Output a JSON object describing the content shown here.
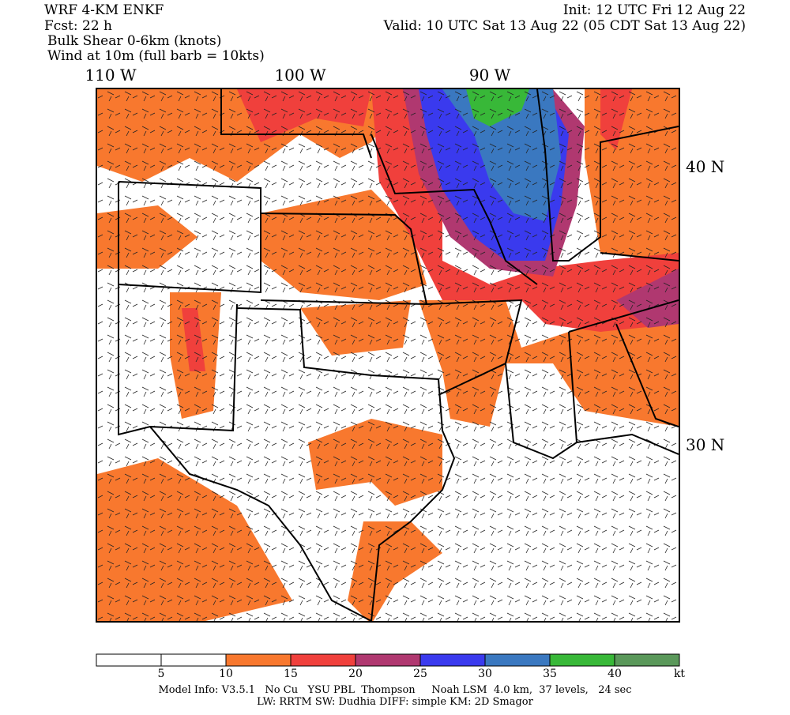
{
  "header": {
    "model": "WRF 4-KM ENKF",
    "forecast": "Fcst:   22 h",
    "field": "Bulk Shear 0-6km (knots)",
    "wind": "Wind at 10m (full barb = 10kts)",
    "init": "Init: 12 UTC Fri 12 Aug 22",
    "valid": "Valid: 10 UTC Sat 13 Aug 22 (05 CDT Sat 13 Aug 22)"
  },
  "axis_labels": {
    "longitudes": [
      "110 W",
      "100 W",
      "90 W"
    ],
    "latitudes": [
      "40 N",
      "30 N"
    ]
  },
  "colorbar": {
    "colors": [
      "#ffffff",
      "#ffffff",
      "#f8782e",
      "#f0403c",
      "#b03870",
      "#3a3aee",
      "#3a78c0",
      "#38b838",
      "#5a985a"
    ],
    "ticks": [
      5,
      10,
      15,
      20,
      25,
      30,
      35,
      40
    ],
    "unit": "kt"
  },
  "footer": {
    "line1": "Model Info: V3.5.1   No Cu   YSU PBL  Thompson     Noah LSM  4.0 km,  37 levels,   24 sec",
    "line2": "LW: RRTM SW: Dudhia  DIFF: simple KM: 2D Smagor"
  }
}
